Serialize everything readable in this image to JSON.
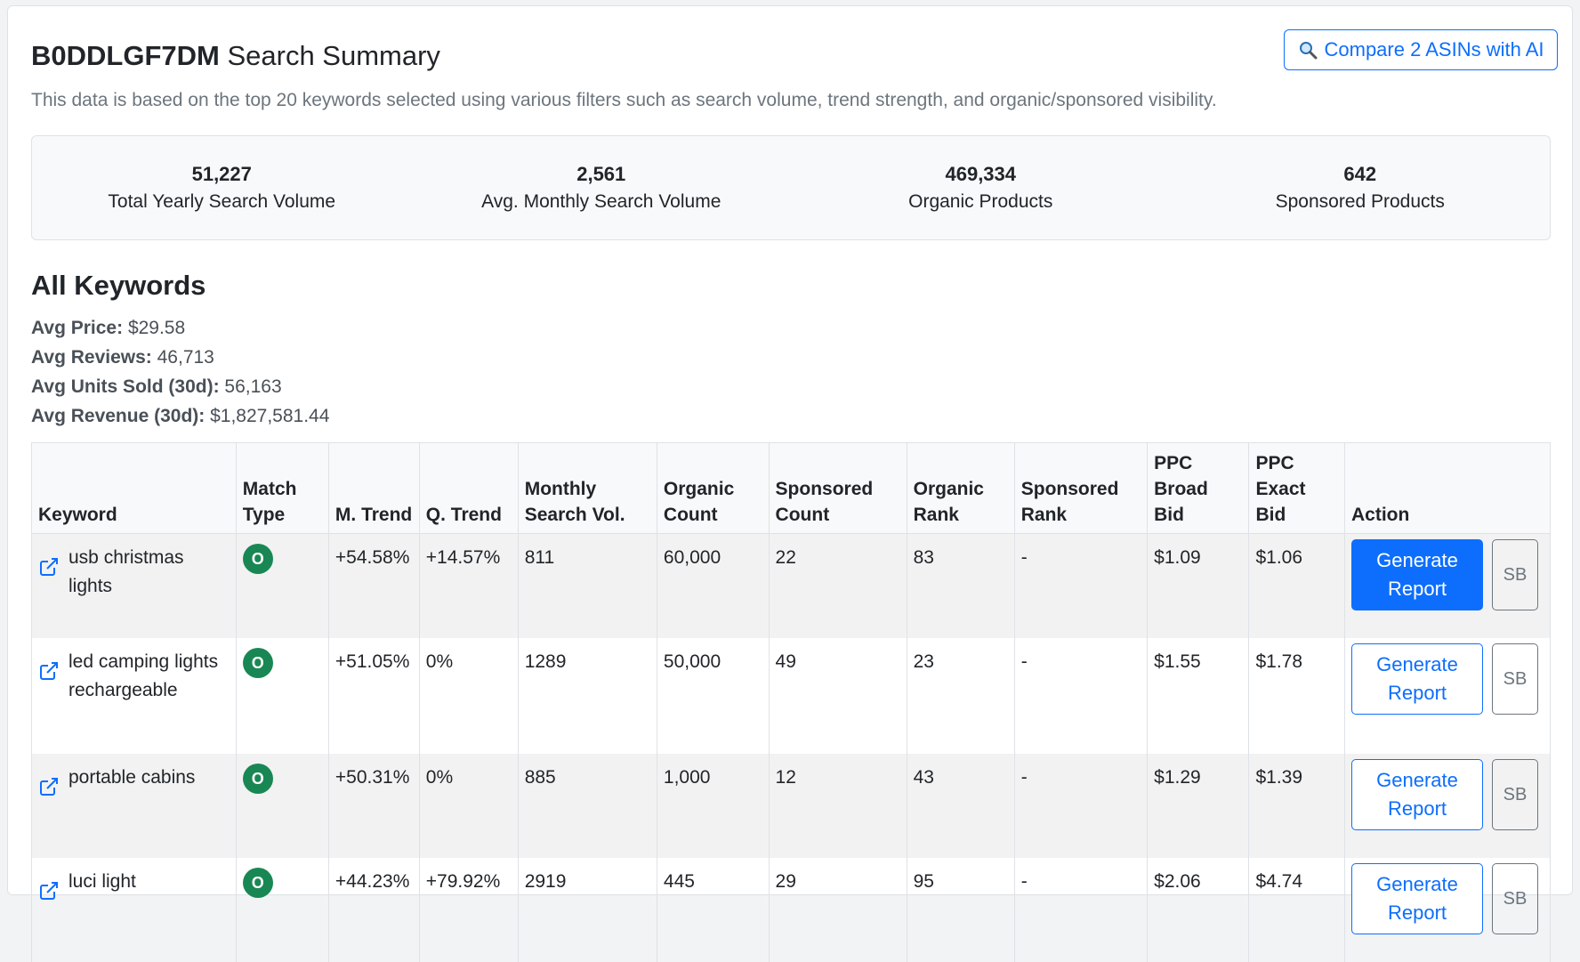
{
  "header": {
    "asin": "B0DDLGF7DM",
    "title_suffix": "Search Summary",
    "compare_button": "Compare 2 ASINs with AI",
    "subtitle": "This data is based on the top 20 keywords selected using various filters such as search volume, trend strength, and organic/sponsored visibility."
  },
  "stats": [
    {
      "value": "51,227",
      "label": "Total Yearly Search Volume"
    },
    {
      "value": "2,561",
      "label": "Avg. Monthly Search Volume"
    },
    {
      "value": "469,334",
      "label": "Organic Products"
    },
    {
      "value": "642",
      "label": "Sponsored Products"
    }
  ],
  "keywords_section": {
    "title": "All Keywords",
    "avgs": [
      {
        "label": "Avg Price:",
        "value": "$29.58"
      },
      {
        "label": "Avg Reviews:",
        "value": "46,713"
      },
      {
        "label": "Avg Units Sold (30d):",
        "value": "56,163"
      },
      {
        "label": "Avg Revenue (30d):",
        "value": "$1,827,581.44"
      }
    ]
  },
  "table": {
    "headers": [
      "Keyword",
      "Match Type",
      "M. Trend",
      "Q. Trend",
      "Monthly Search Vol.",
      "Organic Count",
      "Sponsored Count",
      "Organic Rank",
      "Sponsored Rank",
      "PPC Broad Bid",
      "PPC Exact Bid",
      "Action"
    ],
    "generate_label": "Generate Report",
    "sb_label": "SB",
    "rows": [
      {
        "keyword": "usb christmas lights",
        "match": "O",
        "m_trend": "+54.58%",
        "q_trend": "+14.57%",
        "monthly": "811",
        "organic_count": "60,000",
        "sponsored_count": "22",
        "organic_rank": "83",
        "sponsored_rank": "-",
        "broad_bid": "$1.09",
        "exact_bid": "$1.06"
      },
      {
        "keyword": "led camping lights rechargeable",
        "match": "O",
        "m_trend": "+51.05%",
        "q_trend": "0%",
        "monthly": "1289",
        "organic_count": "50,000",
        "sponsored_count": "49",
        "organic_rank": "23",
        "sponsored_rank": "-",
        "broad_bid": "$1.55",
        "exact_bid": "$1.78"
      },
      {
        "keyword": "portable cabins",
        "match": "O",
        "m_trend": "+50.31%",
        "q_trend": "0%",
        "monthly": "885",
        "organic_count": "1,000",
        "sponsored_count": "12",
        "organic_rank": "43",
        "sponsored_rank": "-",
        "broad_bid": "$1.29",
        "exact_bid": "$1.39"
      },
      {
        "keyword": "luci light",
        "match": "O",
        "m_trend": "+44.23%",
        "q_trend": "+79.92%",
        "monthly": "2919",
        "organic_count": "445",
        "sponsored_count": "29",
        "organic_rank": "95",
        "sponsored_rank": "-",
        "broad_bid": "$2.06",
        "exact_bid": "$4.74"
      }
    ]
  },
  "colors": {
    "primary": "#0d6efd",
    "success": "#198754",
    "muted": "#6c757d"
  }
}
